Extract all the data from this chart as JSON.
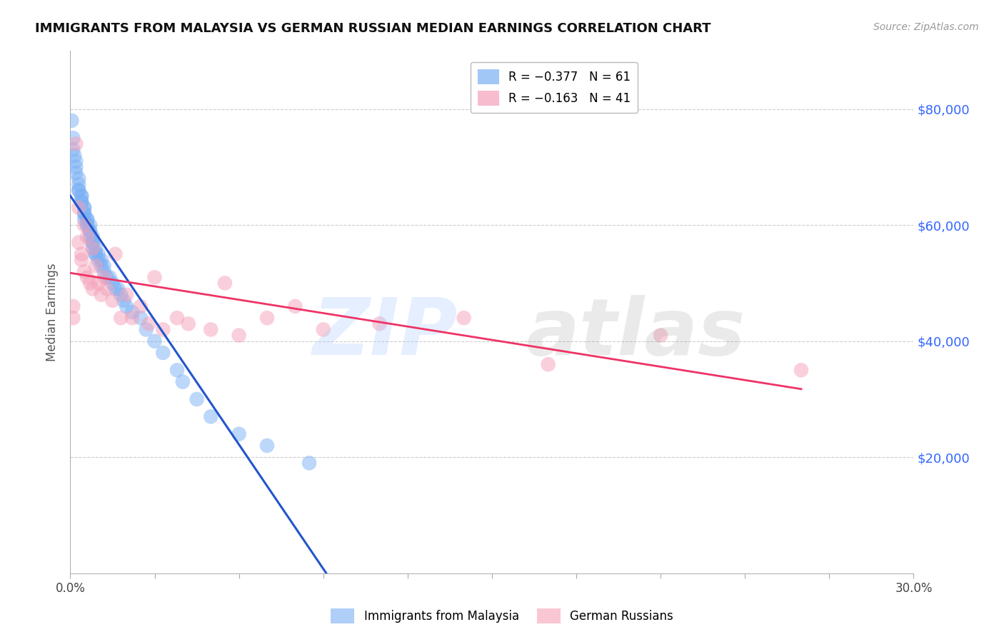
{
  "title": "IMMIGRANTS FROM MALAYSIA VS GERMAN RUSSIAN MEDIAN EARNINGS CORRELATION CHART",
  "source": "Source: ZipAtlas.com",
  "ylabel": "Median Earnings",
  "y_ticks": [
    20000,
    40000,
    60000,
    80000
  ],
  "y_tick_labels": [
    "$20,000",
    "$40,000",
    "$60,000",
    "$80,000"
  ],
  "legend_r": [
    {
      "label": "R = −0.377   N = 61",
      "color": "#7ab0f5"
    },
    {
      "label": "R = −0.163   N = 41",
      "color": "#f5a0b0"
    }
  ],
  "legend_labels": [
    "Immigrants from Malaysia",
    "German Russians"
  ],
  "xlim": [
    0.0,
    0.3
  ],
  "ylim": [
    0,
    90000
  ],
  "blue_color": "#7ab0f5",
  "pink_color": "#f5a0b8",
  "blue_line_color": "#2255cc",
  "pink_line_color": "#ee3366",
  "dashed_line_color": "#bbbbbb",
  "title_color": "#111111",
  "source_color": "#999999",
  "ytick_color": "#3366ff",
  "grid_color": "#cccccc",
  "malaysia_x": [
    0.0005,
    0.001,
    0.001,
    0.0015,
    0.002,
    0.002,
    0.002,
    0.003,
    0.003,
    0.003,
    0.003,
    0.004,
    0.004,
    0.004,
    0.004,
    0.005,
    0.005,
    0.005,
    0.005,
    0.005,
    0.006,
    0.006,
    0.006,
    0.006,
    0.007,
    0.007,
    0.007,
    0.007,
    0.008,
    0.008,
    0.008,
    0.008,
    0.009,
    0.009,
    0.009,
    0.01,
    0.01,
    0.011,
    0.011,
    0.012,
    0.012,
    0.013,
    0.014,
    0.015,
    0.016,
    0.017,
    0.018,
    0.019,
    0.02,
    0.022,
    0.025,
    0.027,
    0.03,
    0.033,
    0.038,
    0.04,
    0.045,
    0.05,
    0.06,
    0.07,
    0.085
  ],
  "malaysia_y": [
    78000,
    75000,
    73000,
    72000,
    71000,
    70000,
    69000,
    68000,
    67000,
    66000,
    66000,
    65000,
    65000,
    64000,
    64000,
    63000,
    63000,
    62000,
    62000,
    61000,
    61000,
    61000,
    60000,
    60000,
    60000,
    59000,
    59000,
    58000,
    58000,
    57000,
    57000,
    56000,
    56000,
    55000,
    55000,
    55000,
    54000,
    54000,
    53000,
    53000,
    52000,
    51000,
    51000,
    50000,
    49000,
    49000,
    48000,
    47000,
    46000,
    45000,
    44000,
    42000,
    40000,
    38000,
    35000,
    33000,
    30000,
    27000,
    24000,
    22000,
    19000
  ],
  "german_russian_x": [
    0.001,
    0.001,
    0.002,
    0.003,
    0.003,
    0.004,
    0.004,
    0.005,
    0.005,
    0.006,
    0.006,
    0.007,
    0.008,
    0.008,
    0.009,
    0.01,
    0.011,
    0.012,
    0.013,
    0.015,
    0.016,
    0.018,
    0.02,
    0.022,
    0.025,
    0.028,
    0.03,
    0.033,
    0.038,
    0.042,
    0.05,
    0.055,
    0.06,
    0.07,
    0.08,
    0.09,
    0.11,
    0.14,
    0.17,
    0.21,
    0.26
  ],
  "german_russian_y": [
    46000,
    44000,
    74000,
    63000,
    57000,
    55000,
    54000,
    52000,
    60000,
    51000,
    58000,
    50000,
    56000,
    49000,
    53000,
    50000,
    48000,
    51000,
    49000,
    47000,
    55000,
    44000,
    48000,
    44000,
    46000,
    43000,
    51000,
    42000,
    44000,
    43000,
    42000,
    50000,
    41000,
    44000,
    46000,
    42000,
    43000,
    44000,
    36000,
    41000,
    35000
  ]
}
